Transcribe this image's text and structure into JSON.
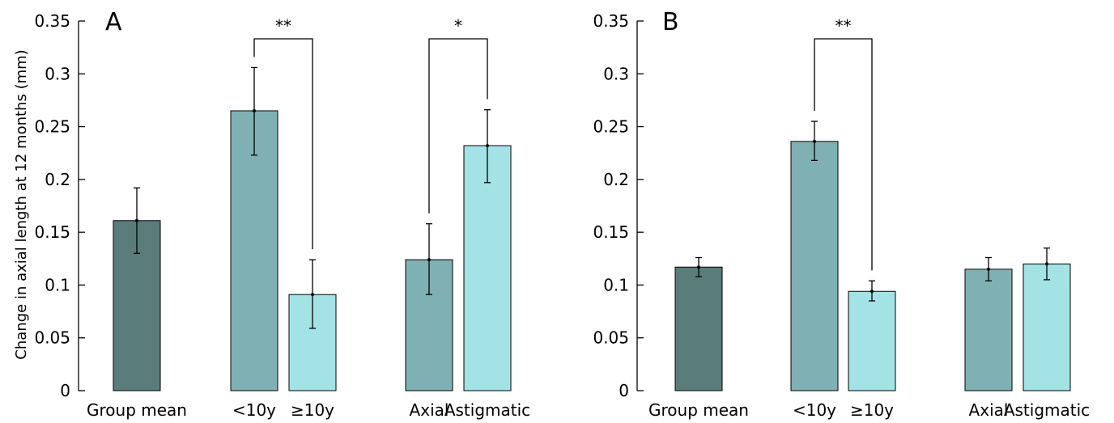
{
  "chart_data": [
    {
      "type": "bar",
      "panel_label": "A",
      "ylabel": "Change in axial length at 12 months (mm)",
      "ylim": [
        0,
        0.35
      ],
      "yticks": [
        "0",
        "0.05",
        "0.1",
        "0.15",
        "0.2",
        "0.25",
        "0.3",
        "0.35"
      ],
      "groups": [
        {
          "bars": [
            {
              "label": "Group mean",
              "value": 0.161,
              "err_low": 0.13,
              "err_high": 0.192,
              "color": "#5a7c7a"
            }
          ]
        },
        {
          "bars": [
            {
              "label": "<10y",
              "value": 0.265,
              "err_low": 0.223,
              "err_high": 0.306,
              "color": "#7fb1b4"
            },
            {
              "label": "≥10y",
              "value": 0.091,
              "err_low": 0.059,
              "err_high": 0.124,
              "color": "#a3e3e5"
            }
          ]
        },
        {
          "bars": [
            {
              "label": "Axial",
              "value": 0.124,
              "err_low": 0.091,
              "err_high": 0.158,
              "color": "#7fb1b4"
            },
            {
              "label": "Astigmatic",
              "value": 0.232,
              "err_low": 0.197,
              "err_high": 0.266,
              "color": "#a3e3e5"
            }
          ]
        }
      ],
      "significance": [
        {
          "label": "**",
          "from": "<10y",
          "to": "≥10y"
        },
        {
          "label": "*",
          "from": "Axial",
          "to": "Astigmatic"
        }
      ]
    },
    {
      "type": "bar",
      "panel_label": "B",
      "ylabel": "",
      "ylim": [
        0,
        0.35
      ],
      "yticks": [
        "0",
        "0.05",
        "0.1",
        "0.15",
        "0.2",
        "0.25",
        "0.3",
        "0.35"
      ],
      "groups": [
        {
          "bars": [
            {
              "label": "Group mean",
              "value": 0.117,
              "err_low": 0.108,
              "err_high": 0.126,
              "color": "#5a7c7a"
            }
          ]
        },
        {
          "bars": [
            {
              "label": "<10y",
              "value": 0.236,
              "err_low": 0.218,
              "err_high": 0.255,
              "color": "#7fb1b4"
            },
            {
              "label": "≥10y",
              "value": 0.094,
              "err_low": 0.085,
              "err_high": 0.104,
              "color": "#a3e3e5"
            }
          ]
        },
        {
          "bars": [
            {
              "label": "Axial",
              "value": 0.115,
              "err_low": 0.104,
              "err_high": 0.126,
              "color": "#7fb1b4"
            },
            {
              "label": "Astigmatic",
              "value": 0.12,
              "err_low": 0.105,
              "err_high": 0.135,
              "color": "#a3e3e5"
            }
          ]
        }
      ],
      "significance": [
        {
          "label": "**",
          "from": "<10y",
          "to": "≥10y"
        }
      ]
    }
  ]
}
